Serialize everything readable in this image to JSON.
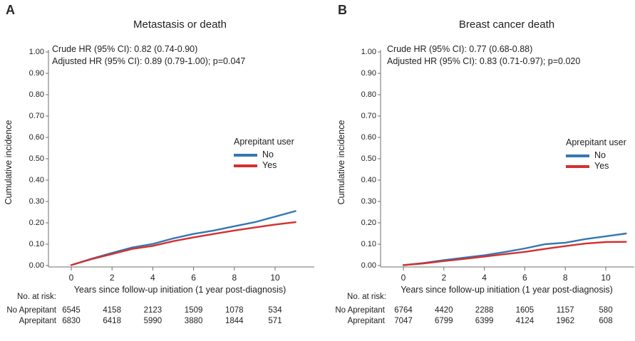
{
  "colors": {
    "no_line": "#3477b4",
    "yes_line": "#d3302f",
    "axis": "#6f6f6f",
    "text": "#1f1f1f",
    "background": "#ffffff"
  },
  "panels": [
    {
      "letter": "A"
    },
    {
      "letter": "B"
    }
  ],
  "chart_data": [
    {
      "type": "line",
      "title": "Metastasis or death",
      "xlabel": "Years since follow-up initiation (1 year post-diagnosis)",
      "ylabel": "Cumulative incidence",
      "xlim": [
        0,
        11.9
      ],
      "ylim": [
        0,
        1.0
      ],
      "grid": false,
      "legend_position": "inside-right",
      "legend_title": "Aprepitant user",
      "x_ticks": [
        0,
        2,
        4,
        6,
        8,
        10
      ],
      "y_ticks": [
        "0.00",
        "0.10",
        "0.20",
        "0.30",
        "0.40",
        "0.50",
        "0.60",
        "0.70",
        "0.80",
        "0.90",
        "1.00"
      ],
      "annotations": [
        "Crude HR (95% CI): 0.82 (0.74-0.90)",
        "Adjusted HR (95% CI): 0.89 (0.79-1.00); p=0.047"
      ],
      "x": [
        0,
        1,
        2,
        3,
        4,
        5,
        6,
        7,
        8,
        9,
        10,
        11
      ],
      "series": [
        {
          "name": "No",
          "color": "#3477b4",
          "values": [
            0.002,
            0.032,
            0.059,
            0.085,
            0.101,
            0.127,
            0.148,
            0.164,
            0.184,
            0.203,
            0.229,
            0.255
          ]
        },
        {
          "name": "Yes",
          "color": "#d3302f",
          "values": [
            0.002,
            0.03,
            0.054,
            0.078,
            0.092,
            0.114,
            0.132,
            0.148,
            0.164,
            0.178,
            0.192,
            0.203
          ]
        }
      ],
      "risk_table": {
        "caption": "No. at risk:",
        "rows": [
          {
            "label": "No Aprepitant",
            "values": [
              6545,
              4158,
              2123,
              1509,
              1078,
              534
            ]
          },
          {
            "label": "Aprepitant",
            "values": [
              6830,
              6418,
              5990,
              3880,
              1844,
              571
            ]
          }
        ]
      }
    },
    {
      "type": "line",
      "title": "Breast cancer death",
      "xlabel": "Years since follow-up initiation (1 year post-diagnosis)",
      "ylabel": "Cumulative incidence",
      "xlim": [
        0,
        11.9
      ],
      "ylim": [
        0,
        1.0
      ],
      "grid": false,
      "legend_position": "inside-right",
      "legend_title": "Aprepitant user",
      "x_ticks": [
        0,
        2,
        4,
        6,
        8,
        10
      ],
      "y_ticks": [
        "0.00",
        "0.10",
        "0.20",
        "0.30",
        "0.40",
        "0.50",
        "0.60",
        "0.70",
        "0.80",
        "0.90",
        "1.00"
      ],
      "annotations": [
        "Crude HR (95% CI): 0.77 (0.68-0.88)",
        "Adjusted HR (95% CI): 0.83 (0.71-0.97); p=0.020"
      ],
      "x": [
        0,
        1,
        2,
        3,
        4,
        5,
        6,
        7,
        8,
        9,
        10,
        11
      ],
      "series": [
        {
          "name": "No",
          "color": "#3477b4",
          "values": [
            0.002,
            0.012,
            0.025,
            0.037,
            0.048,
            0.063,
            0.08,
            0.1,
            0.107,
            0.124,
            0.137,
            0.15
          ]
        },
        {
          "name": "Yes",
          "color": "#d3302f",
          "values": [
            0.002,
            0.01,
            0.021,
            0.031,
            0.042,
            0.053,
            0.064,
            0.078,
            0.091,
            0.103,
            0.11,
            0.111
          ]
        }
      ],
      "risk_table": {
        "caption": "No. at risk:",
        "rows": [
          {
            "label": "No Aprepitant",
            "values": [
              6764,
              4420,
              2288,
              1605,
              1157,
              580
            ]
          },
          {
            "label": "Aprepitant",
            "values": [
              7047,
              6799,
              6399,
              4124,
              1962,
              608
            ]
          }
        ]
      }
    }
  ]
}
